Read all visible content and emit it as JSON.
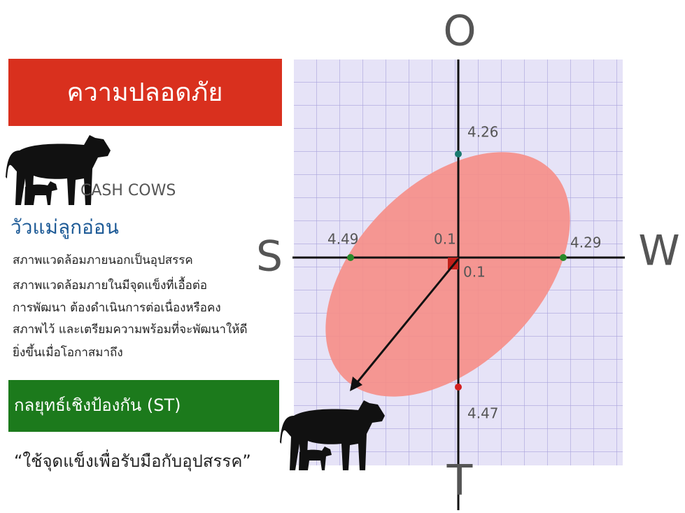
{
  "panel": {
    "header": "ความปลอดภัย",
    "label": "CASH COWS",
    "subtitle": "วัวแม่ลูกอ่อน",
    "description": [
      "สภาพแวดล้อมภายนอกเป็นอุปสรรค",
      "สภาพแวดล้อมภายในมีจุดแข็งที่เอื้อต่อ",
      "การพัฒนา ต้องดำเนินการต่อเนื่องหรือคง",
      "สภาพไว้ และเตรียมความพร้อมที่จะพัฒนาให้ดี",
      "ยิ่งขึ้นเมื่อโอกาสมาถึง"
    ],
    "strategy": "กลยุทธ์เชิงป้องกัน (ST)",
    "quote": "“ใช้จุดแข็งเพื่อรับมือกับอุปสรรค”"
  },
  "diagram": {
    "axes": {
      "top": "O",
      "bottom": "T",
      "left": "S",
      "right": "W"
    },
    "values": {
      "top": 4.26,
      "left": 4.49,
      "right": 4.29,
      "bottom": 4.47,
      "center_x": 0.1,
      "center_y": 0.1
    }
  }
}
